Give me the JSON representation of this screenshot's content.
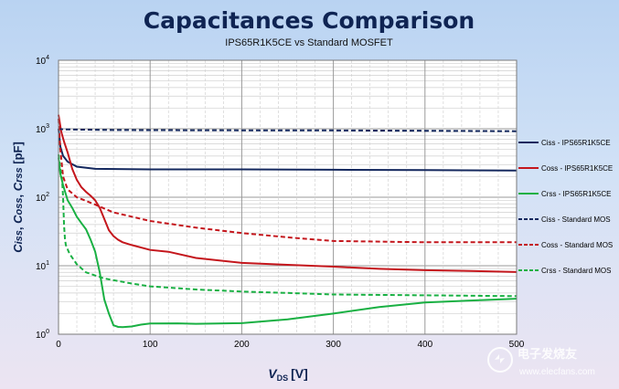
{
  "chart_data": {
    "type": "line",
    "title": "Capacitances Comparison",
    "subtitle": "IPS65R1K5CE vs Standard MOSFET",
    "xlabel_main": "V",
    "xlabel_sub": "DS",
    "xlabel_unit": "[V]",
    "ylabel_parts": [
      "C",
      "iss",
      ", ",
      "C",
      "oss",
      ", ",
      "C",
      "rss",
      " [pF]"
    ],
    "xlim": [
      0,
      500
    ],
    "ylim": [
      1,
      10000
    ],
    "yscale": "log",
    "x_ticks": [
      "0",
      "100",
      "200",
      "300",
      "400",
      "500"
    ],
    "y_ticks": [
      {
        "base": "10",
        "exp": "0"
      },
      {
        "base": "10",
        "exp": "1"
      },
      {
        "base": "10",
        "exp": "2"
      },
      {
        "base": "10",
        "exp": "3"
      },
      {
        "base": "10",
        "exp": "4"
      }
    ],
    "series": [
      {
        "name": "Ciss - IPS65R1K5CE",
        "color": "#14285e",
        "dash": false,
        "points": [
          [
            0,
            1000
          ],
          [
            2,
            550
          ],
          [
            5,
            400
          ],
          [
            10,
            330
          ],
          [
            20,
            280
          ],
          [
            40,
            260
          ],
          [
            100,
            255
          ],
          [
            200,
            255
          ],
          [
            300,
            252
          ],
          [
            400,
            250
          ],
          [
            500,
            245
          ]
        ]
      },
      {
        "name": "Coss - IPS65R1K5CE",
        "color": "#c4161c",
        "dash": false,
        "points": [
          [
            0,
            1600
          ],
          [
            3,
            900
          ],
          [
            6,
            650
          ],
          [
            10,
            450
          ],
          [
            15,
            260
          ],
          [
            20,
            180
          ],
          [
            25,
            140
          ],
          [
            30,
            120
          ],
          [
            35,
            105
          ],
          [
            40,
            90
          ],
          [
            45,
            70
          ],
          [
            50,
            48
          ],
          [
            55,
            33
          ],
          [
            60,
            27
          ],
          [
            65,
            24
          ],
          [
            70,
            22
          ],
          [
            80,
            20
          ],
          [
            100,
            17
          ],
          [
            120,
            16
          ],
          [
            150,
            13
          ],
          [
            200,
            11
          ],
          [
            250,
            10.3
          ],
          [
            300,
            9.7
          ],
          [
            350,
            9
          ],
          [
            400,
            8.6
          ],
          [
            450,
            8.4
          ],
          [
            500,
            8.1
          ]
        ]
      },
      {
        "name": "Crss - IPS65R1K5CE",
        "color": "#19b043",
        "dash": false,
        "points": [
          [
            0,
            380
          ],
          [
            2,
            220
          ],
          [
            5,
            150
          ],
          [
            10,
            90
          ],
          [
            15,
            70
          ],
          [
            20,
            52
          ],
          [
            25,
            42
          ],
          [
            30,
            34
          ],
          [
            35,
            24
          ],
          [
            40,
            16
          ],
          [
            45,
            8
          ],
          [
            50,
            3.2
          ],
          [
            55,
            2
          ],
          [
            60,
            1.35
          ],
          [
            65,
            1.28
          ],
          [
            70,
            1.27
          ],
          [
            80,
            1.3
          ],
          [
            90,
            1.38
          ],
          [
            100,
            1.43
          ],
          [
            130,
            1.44
          ],
          [
            150,
            1.42
          ],
          [
            200,
            1.45
          ],
          [
            250,
            1.65
          ],
          [
            300,
            2
          ],
          [
            350,
            2.5
          ],
          [
            400,
            2.9
          ],
          [
            450,
            3.1
          ],
          [
            500,
            3.3
          ]
        ]
      },
      {
        "name": "Ciss - Standard MOS",
        "color": "#14285e",
        "dash": true,
        "points": [
          [
            0,
            1000
          ],
          [
            5,
            980
          ],
          [
            50,
            960
          ],
          [
            100,
            955
          ],
          [
            200,
            950
          ],
          [
            300,
            945
          ],
          [
            400,
            935
          ],
          [
            500,
            920
          ]
        ]
      },
      {
        "name": "Coss - Standard MOS",
        "color": "#c4161c",
        "dash": true,
        "points": [
          [
            0,
            1400
          ],
          [
            2,
            500
          ],
          [
            5,
            200
          ],
          [
            10,
            130
          ],
          [
            20,
            100
          ],
          [
            40,
            78
          ],
          [
            60,
            60
          ],
          [
            80,
            52
          ],
          [
            100,
            45
          ],
          [
            150,
            36
          ],
          [
            200,
            30
          ],
          [
            250,
            26
          ],
          [
            300,
            23
          ],
          [
            400,
            22
          ],
          [
            500,
            22
          ]
        ]
      },
      {
        "name": "Crss - Standard MOS",
        "color": "#19b043",
        "dash": true,
        "points": [
          [
            0,
            420
          ],
          [
            2,
            260
          ],
          [
            4,
            170
          ],
          [
            5,
            100
          ],
          [
            6,
            40
          ],
          [
            7,
            25
          ],
          [
            8,
            20
          ],
          [
            12,
            15
          ],
          [
            20,
            10.5
          ],
          [
            30,
            8
          ],
          [
            50,
            6.5
          ],
          [
            80,
            5.5
          ],
          [
            100,
            5
          ],
          [
            150,
            4.5
          ],
          [
            200,
            4.2
          ],
          [
            250,
            4
          ],
          [
            300,
            3.8
          ],
          [
            400,
            3.7
          ],
          [
            500,
            3.6
          ]
        ]
      }
    ]
  },
  "watermark": {
    "site": "www.elecfans.com",
    "brand": "电子发烧友"
  }
}
